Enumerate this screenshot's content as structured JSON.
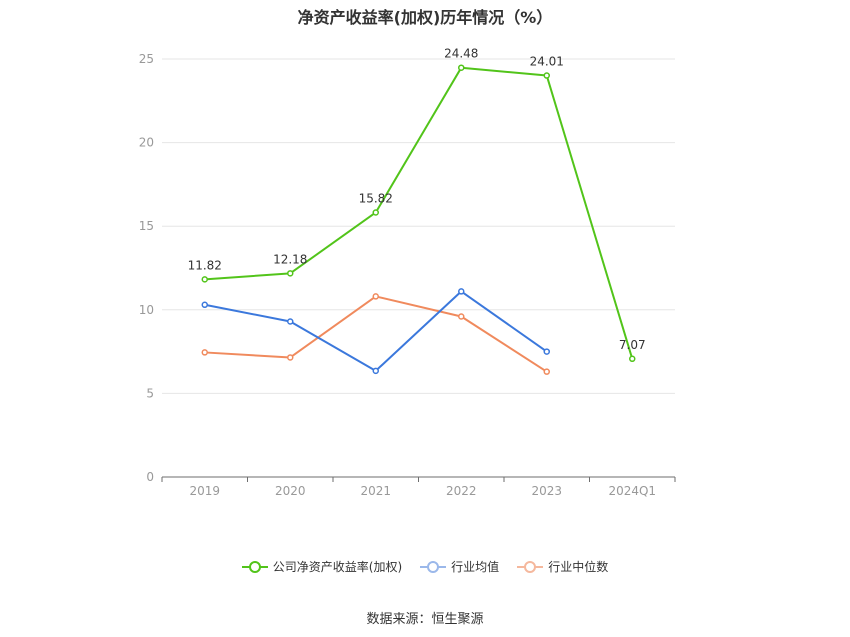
{
  "chart_data": {
    "type": "line",
    "title": "净资产收益率(加权)历年情况（%）",
    "categories": [
      "2019",
      "2020",
      "2021",
      "2022",
      "2023",
      "2024Q1"
    ],
    "ylim": [
      0,
      25
    ],
    "yticks": [
      0,
      5,
      10,
      15,
      20,
      25
    ],
    "grid": true,
    "legend_position": "bottom",
    "series": [
      {
        "name": "公司净资产收益率(加权)",
        "color": "#52c41a",
        "values": [
          11.82,
          12.18,
          15.82,
          24.48,
          24.01,
          7.07
        ],
        "labels": [
          "11.82",
          "12.18",
          "15.82",
          "24.48",
          "24.01",
          "7.07"
        ],
        "legend_label": "公司净资产收益率(加权)"
      },
      {
        "name": "行业均值",
        "color": "#3b78dc",
        "values": [
          10.3,
          9.3,
          6.35,
          11.1,
          7.5,
          null
        ],
        "legend_label": "行业均值"
      },
      {
        "name": "行业中位数",
        "color": "#f08a5d",
        "values": [
          7.45,
          7.15,
          10.8,
          9.6,
          6.3,
          null
        ],
        "legend_label": "行业中位数"
      }
    ]
  },
  "source_text": "数据来源：恒生聚源"
}
